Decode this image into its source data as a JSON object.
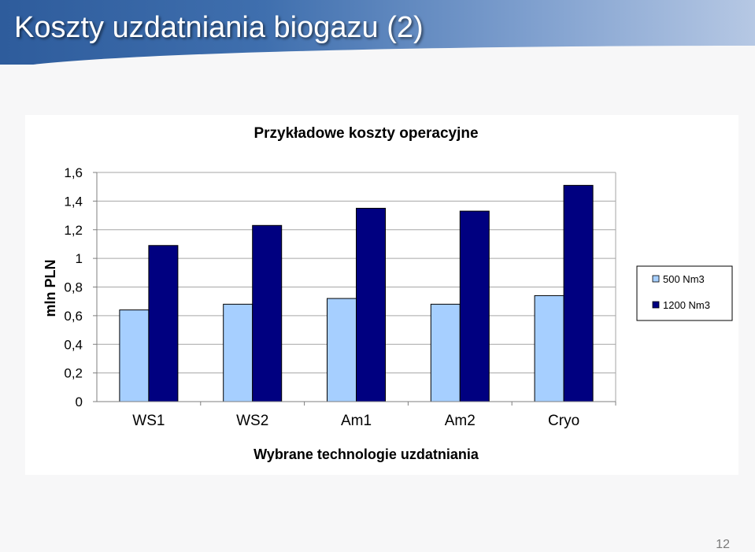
{
  "slide": {
    "title": "Koszty uzdatniania biogazu (2)",
    "page_number": "12"
  },
  "colors": {
    "series_500": "#a6cfff",
    "series_1200": "#000080",
    "header_start": "#2e5c9c",
    "header_end": "#b6c8e4"
  },
  "chart_data": {
    "type": "bar",
    "title": "Przykładowe koszty operacyjne",
    "xlabel": "Wybrane technologie uzdatniania",
    "ylabel": "mln PLN",
    "categories": [
      "WS1",
      "WS2",
      "Am1",
      "Am2",
      "Cryo"
    ],
    "series": [
      {
        "name": "500 Nm3",
        "values": [
          0.64,
          0.68,
          0.72,
          0.68,
          0.74
        ],
        "color": "#a6cfff"
      },
      {
        "name": "1200 Nm3",
        "values": [
          1.09,
          1.23,
          1.35,
          1.33,
          1.51
        ],
        "color": "#000080"
      }
    ],
    "ylim": [
      0,
      1.6
    ],
    "yticks": [
      0,
      0.2,
      0.4,
      0.6,
      0.8,
      1,
      1.2,
      1.4,
      1.6
    ],
    "ytick_labels": [
      "0",
      "0,2",
      "0,4",
      "0,6",
      "0,8",
      "1",
      "1,2",
      "1,4",
      "1,6"
    ],
    "grid": true,
    "legend_position": "right"
  }
}
